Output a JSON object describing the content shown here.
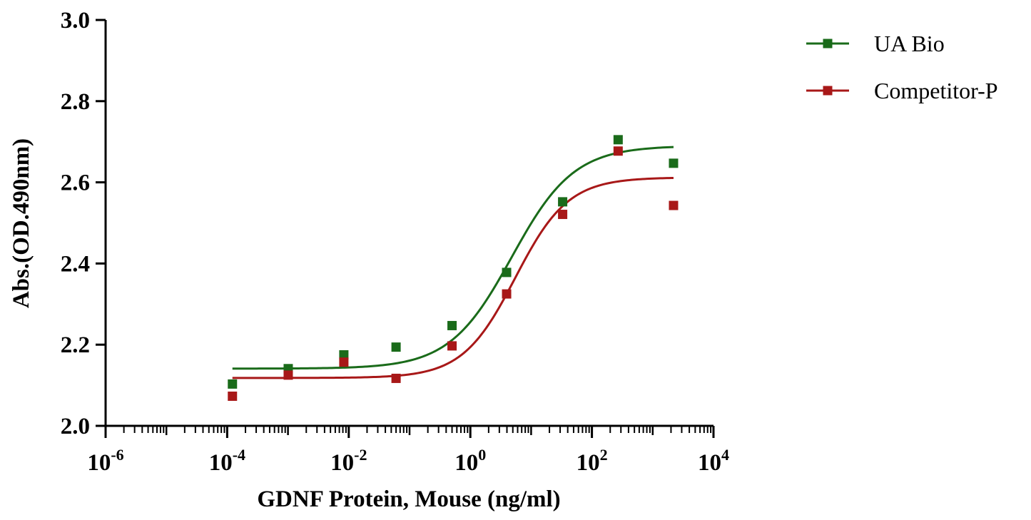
{
  "chart_data": {
    "type": "scatter",
    "title": "",
    "xlabel": "GDNF Protein, Mouse (ng/ml)",
    "ylabel": "Abs.(OD.490nm)",
    "x_scale": "log",
    "xlim": [
      1e-06,
      10000
    ],
    "ylim": [
      2.0,
      3.0
    ],
    "x_ticks": [
      {
        "value": 1e-06,
        "base": "10",
        "exp": "-6"
      },
      {
        "value": 0.0001,
        "base": "10",
        "exp": "-4"
      },
      {
        "value": 0.01,
        "base": "10",
        "exp": "-2"
      },
      {
        "value": 1,
        "base": "10",
        "exp": "0"
      },
      {
        "value": 100,
        "base": "10",
        "exp": "2"
      },
      {
        "value": 10000,
        "base": "10",
        "exp": "4"
      }
    ],
    "y_ticks": [
      {
        "value": 2.0,
        "label": "2.0"
      },
      {
        "value": 2.2,
        "label": "2.2"
      },
      {
        "value": 2.4,
        "label": "2.4"
      },
      {
        "value": 2.6,
        "label": "2.6"
      },
      {
        "value": 2.8,
        "label": "2.8"
      },
      {
        "value": 3.0,
        "label": "3.0"
      }
    ],
    "grid": false,
    "legend_position": "top-right",
    "series": [
      {
        "name": "UA Bio",
        "color": "#1a6b1a",
        "x": [
          0.000122,
          0.00101,
          0.0083,
          0.06,
          0.5,
          3.95,
          33,
          270,
          2200
        ],
        "y": [
          2.103,
          2.141,
          2.175,
          2.194,
          2.247,
          2.378,
          2.552,
          2.705,
          2.647
        ],
        "fit": {
          "bottom": 2.141,
          "top": 2.69,
          "log_ec50": 0.68,
          "hill": 0.85,
          "x_range": [
            0.000122,
            2200
          ]
        }
      },
      {
        "name": "Competitor-P",
        "color": "#a81818",
        "x": [
          0.000122,
          0.00101,
          0.0083,
          0.06,
          0.5,
          3.95,
          33,
          270,
          2200
        ],
        "y": [
          2.073,
          2.125,
          2.157,
          2.117,
          2.197,
          2.325,
          2.521,
          2.677,
          2.543
        ],
        "fit": {
          "bottom": 2.118,
          "top": 2.612,
          "log_ec50": 0.74,
          "hill": 1.0,
          "x_range": [
            0.000122,
            2200
          ]
        }
      }
    ]
  }
}
